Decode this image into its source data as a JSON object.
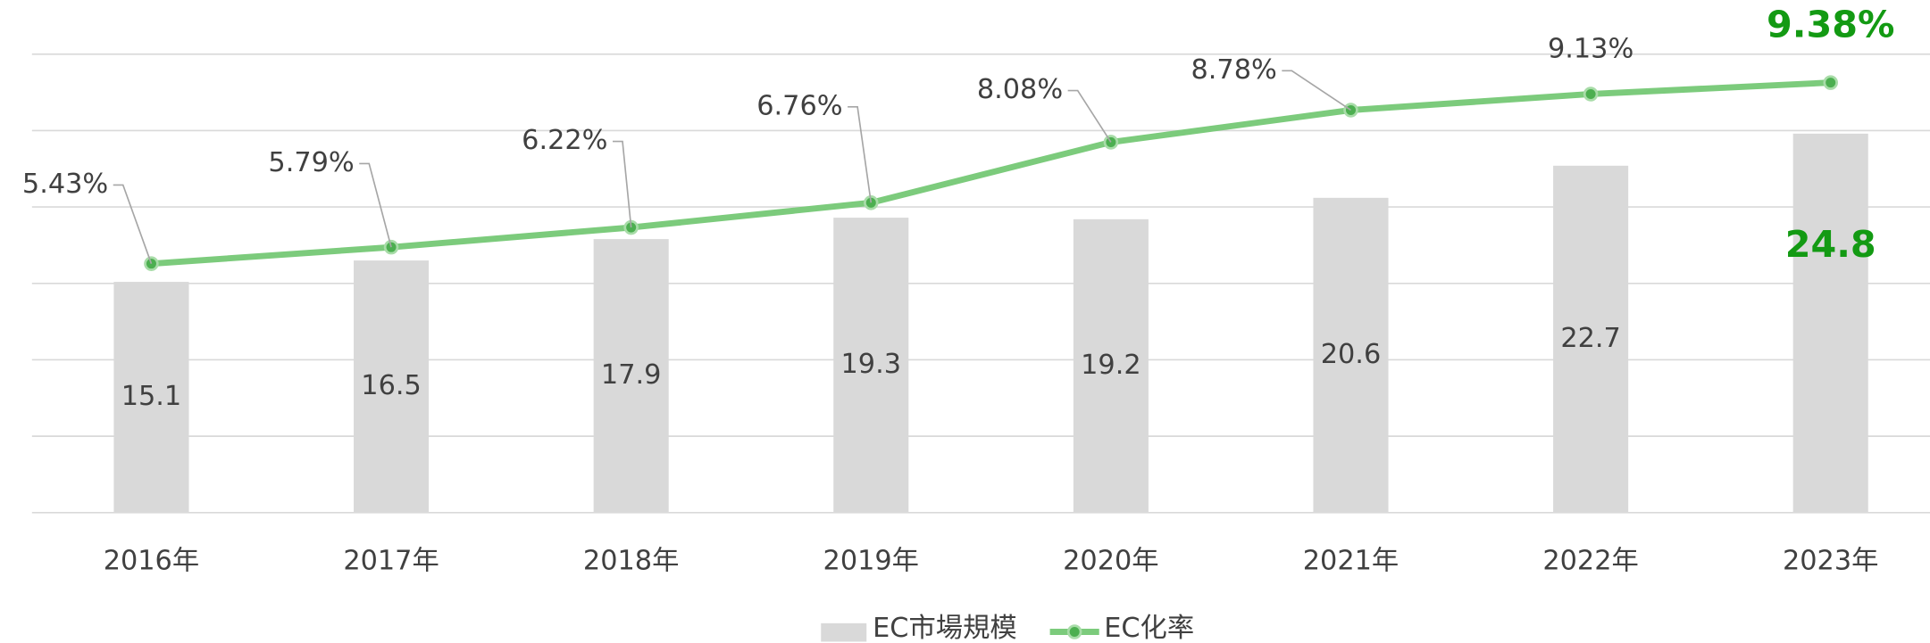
{
  "chart_data": {
    "type": "bar",
    "categories": [
      "2016年",
      "2017年",
      "2018年",
      "2019年",
      "2020年",
      "2021年",
      "2022年",
      "2023年"
    ],
    "series": [
      {
        "name": "EC市場規模",
        "color": "#d9d9d9",
        "values": [
          15.1,
          16.5,
          17.9,
          19.3,
          19.2,
          20.6,
          22.7,
          24.8
        ]
      },
      {
        "name": "EC化率",
        "type": "line",
        "axis": "y2",
        "color": "#7ccb7c",
        "values": [
          5.43,
          5.79,
          6.22,
          6.76,
          8.08,
          8.78,
          9.13,
          9.38
        ],
        "value_labels": [
          "5.43%",
          "5.79%",
          "6.22%",
          "6.76%",
          "8.08%",
          "8.78%",
          "9.13%",
          "9.38%"
        ]
      }
    ],
    "ylim": [
      0,
      30
    ],
    "yticks": [
      0,
      5,
      10,
      15,
      20,
      25,
      30
    ],
    "y2lim": [
      0,
      10
    ],
    "grid": true,
    "legend": "bottom"
  }
}
